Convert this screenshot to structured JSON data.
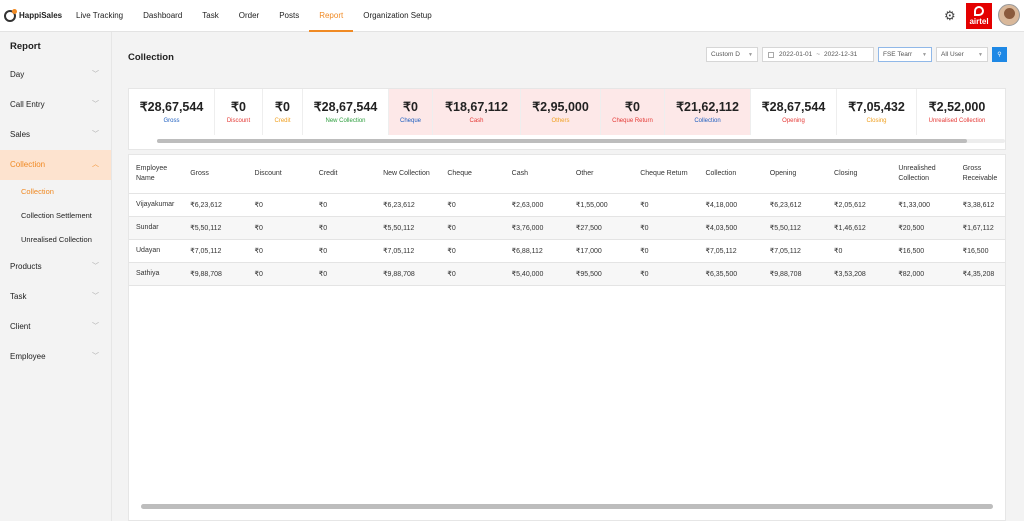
{
  "app": {
    "name": "HappiSales"
  },
  "nav": {
    "items": [
      {
        "label": "Live Tracking"
      },
      {
        "label": "Dashboard"
      },
      {
        "label": "Task"
      },
      {
        "label": "Order"
      },
      {
        "label": "Posts"
      },
      {
        "label": "Report",
        "active": true
      },
      {
        "label": "Organization Setup"
      }
    ],
    "brand_text": "airtel",
    "icons": [
      "gear-icon",
      "avatar"
    ]
  },
  "sidebar": {
    "title": "Report",
    "items": [
      {
        "label": "Day"
      },
      {
        "label": "Call Entry"
      },
      {
        "label": "Sales"
      },
      {
        "label": "Collection",
        "active": true,
        "sub": [
          {
            "label": "Collection",
            "active": true
          },
          {
            "label": "Collection Settlement"
          },
          {
            "label": "Unrealised Collection"
          }
        ]
      },
      {
        "label": "Products"
      },
      {
        "label": "Task"
      },
      {
        "label": "Client"
      },
      {
        "label": "Employee"
      }
    ]
  },
  "page": {
    "title": "Collection"
  },
  "filters": {
    "range_type": "Custom D",
    "date_from": "2022-01-01",
    "date_sep": "~",
    "date_to": "2022-12-31",
    "team": "FSE Tearr",
    "user": "All User",
    "apply_icon": "search-icon"
  },
  "colors": {
    "accent": "#f08a24",
    "blue": "#1e5fc0",
    "red": "#e53935",
    "green": "#2e9e3e",
    "orange": "#f0a020",
    "pink_bg": "#fde8e8"
  },
  "summary": [
    {
      "value": "₹28,67,544",
      "label": "Gross",
      "color": "#1e5fc0",
      "pink": false,
      "w": 86
    },
    {
      "value": "₹0",
      "label": "Discount",
      "color": "#e53935",
      "pink": false,
      "w": 48
    },
    {
      "value": "₹0",
      "label": "Credit",
      "color": "#f0a020",
      "pink": false,
      "w": 40
    },
    {
      "value": "₹28,67,544",
      "label": "New Collection",
      "color": "#2e9e3e",
      "pink": false,
      "w": 86
    },
    {
      "value": "₹0",
      "label": "Cheque",
      "color": "#1e5fc0",
      "pink": true,
      "w": 44
    },
    {
      "value": "₹18,67,112",
      "label": "Cash",
      "color": "#e53935",
      "pink": true,
      "w": 88
    },
    {
      "value": "₹2,95,000",
      "label": "Others",
      "color": "#f0a020",
      "pink": true,
      "w": 80
    },
    {
      "value": "₹0",
      "label": "Cheque Return",
      "color": "#e53935",
      "pink": true,
      "w": 64
    },
    {
      "value": "₹21,62,112",
      "label": "Collection",
      "color": "#1e5fc0",
      "pink": true,
      "w": 86
    },
    {
      "value": "₹28,67,544",
      "label": "Opening",
      "color": "#e53935",
      "pink": false,
      "w": 86
    },
    {
      "value": "₹7,05,432",
      "label": "Closing",
      "color": "#f0a020",
      "pink": false,
      "w": 80
    },
    {
      "value": "₹2,52,000",
      "label": "Unrealised Collection",
      "color": "#e53935",
      "pink": false,
      "w": 80
    }
  ],
  "table": {
    "columns": [
      "Employee Name",
      "Gross",
      "Discount",
      "Credit",
      "New Collection",
      "Cheque",
      "Cash",
      "Other",
      "Cheque Return",
      "Collection",
      "Opening",
      "Closing",
      "Unrealished Collection",
      "Gross Receivable"
    ],
    "rows": [
      [
        "Vijayakumar",
        "₹6,23,612",
        "₹0",
        "₹0",
        "₹6,23,612",
        "₹0",
        "₹2,63,000",
        "₹1,55,000",
        "₹0",
        "₹4,18,000",
        "₹6,23,612",
        "₹2,05,612",
        "₹1,33,000",
        "₹3,38,612"
      ],
      [
        "Sundar",
        "₹5,50,112",
        "₹0",
        "₹0",
        "₹5,50,112",
        "₹0",
        "₹3,76,000",
        "₹27,500",
        "₹0",
        "₹4,03,500",
        "₹5,50,112",
        "₹1,46,612",
        "₹20,500",
        "₹1,67,112"
      ],
      [
        "Udayan",
        "₹7,05,112",
        "₹0",
        "₹0",
        "₹7,05,112",
        "₹0",
        "₹6,88,112",
        "₹17,000",
        "₹0",
        "₹7,05,112",
        "₹7,05,112",
        "₹0",
        "₹16,500",
        "₹16,500"
      ],
      [
        "Sathiya",
        "₹9,88,708",
        "₹0",
        "₹0",
        "₹9,88,708",
        "₹0",
        "₹5,40,000",
        "₹95,500",
        "₹0",
        "₹6,35,500",
        "₹9,88,708",
        "₹3,53,208",
        "₹82,000",
        "₹4,35,208"
      ]
    ]
  }
}
